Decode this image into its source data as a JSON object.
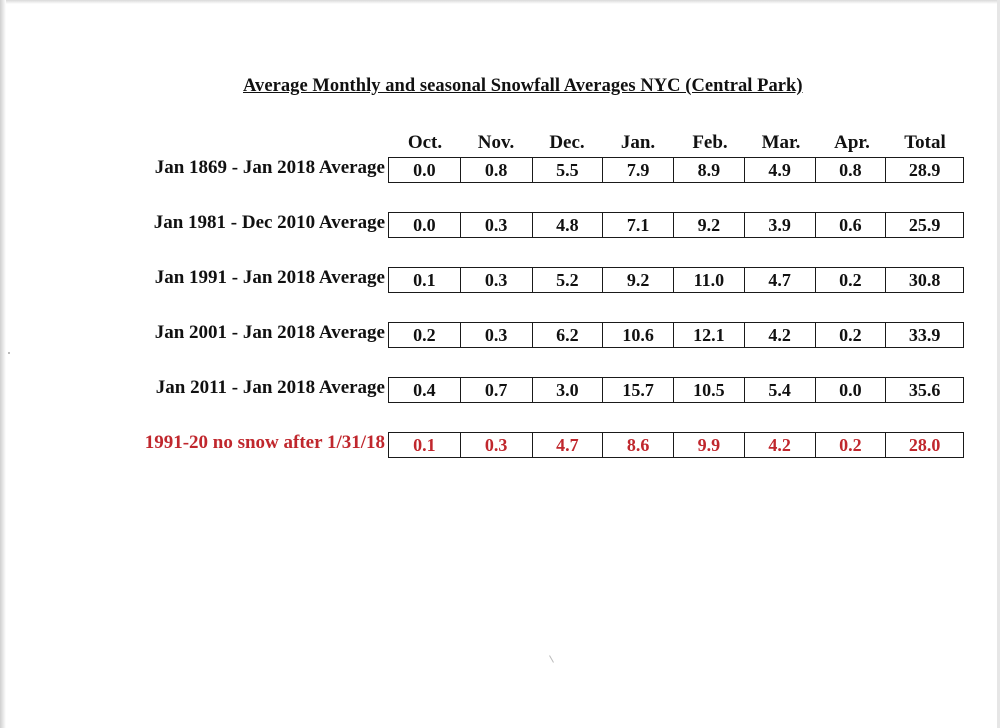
{
  "title": "Average Monthly and seasonal Snowfall Averages NYC (Central Park)",
  "columns": [
    "Oct.",
    "Nov.",
    "Dec.",
    "Jan.",
    "Feb.",
    "Mar.",
    "Apr.",
    "Total"
  ],
  "rows": [
    {
      "label": "Jan 1869 - Jan 2018 Average",
      "values": [
        "0.0",
        "0.8",
        "5.5",
        "7.9",
        "8.9",
        "4.9",
        "0.8",
        "28.9"
      ]
    },
    {
      "label": "Jan 1981 - Dec 2010 Average",
      "values": [
        "0.0",
        "0.3",
        "4.8",
        "7.1",
        "9.2",
        "3.9",
        "0.6",
        "25.9"
      ]
    },
    {
      "label": "Jan 1991 - Jan 2018 Average",
      "values": [
        "0.1",
        "0.3",
        "5.2",
        "9.2",
        "11.0",
        "4.7",
        "0.2",
        "30.8"
      ]
    },
    {
      "label": "Jan 2001 - Jan 2018 Average",
      "values": [
        "0.2",
        "0.3",
        "6.2",
        "10.6",
        "12.1",
        "4.2",
        "0.2",
        "33.9"
      ]
    },
    {
      "label": "Jan 2011 - Jan 2018 Average",
      "values": [
        "0.4",
        "0.7",
        "3.0",
        "15.7",
        "10.5",
        "5.4",
        "0.0",
        "35.6"
      ]
    },
    {
      "label": "1991-20 no snow after 1/31/18",
      "values": [
        "0.1",
        "0.3",
        "4.7",
        "8.6",
        "9.9",
        "4.2",
        "0.2",
        "28.0"
      ]
    }
  ],
  "colors": {
    "text": "#111111",
    "highlight_row": "#c0272d"
  }
}
